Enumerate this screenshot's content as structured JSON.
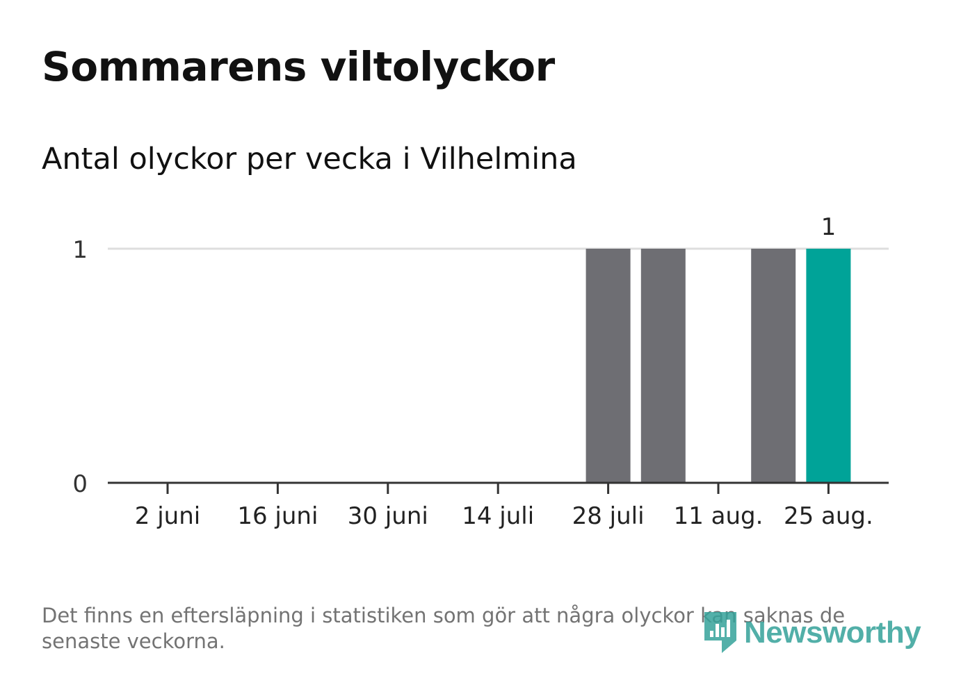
{
  "header": {
    "title": "Sommarens viltolyckor",
    "subtitle": "Antal olyckor per vecka i Vilhelmina"
  },
  "chart_data": {
    "type": "bar",
    "title": "Sommarens viltolyckor",
    "subtitle": "Antal olyckor per vecka i Vilhelmina",
    "categories": [
      "2 juni",
      "9 juni",
      "16 juni",
      "23 juni",
      "30 juni",
      "7 juli",
      "14 juli",
      "21 juli",
      "28 juli",
      "4 aug.",
      "11 aug.",
      "18 aug.",
      "25 aug."
    ],
    "tick_labels": [
      "2 juni",
      "16 juni",
      "30 juni",
      "14 juli",
      "28 juli",
      "11 aug.",
      "25 aug."
    ],
    "values": [
      0,
      0,
      0,
      0,
      0,
      0,
      0,
      0,
      1,
      1,
      0,
      1,
      1
    ],
    "highlight_index": 12,
    "data_labels": [
      {
        "index": 12,
        "text": "1"
      }
    ],
    "yticks": [
      "0",
      "1"
    ],
    "ylim": [
      0,
      1
    ],
    "xlabel": "",
    "ylabel": "",
    "grid": true,
    "colors": {
      "bar": "#6e6e73",
      "highlight": "#00a398",
      "grid": "#dedede",
      "axis": "#333333"
    }
  },
  "footer": {
    "note": "Det finns en eftersläpning i statistiken som gör att några olyckor kan saknas de senaste veckorna.",
    "logo_text": "Newsworthy"
  }
}
